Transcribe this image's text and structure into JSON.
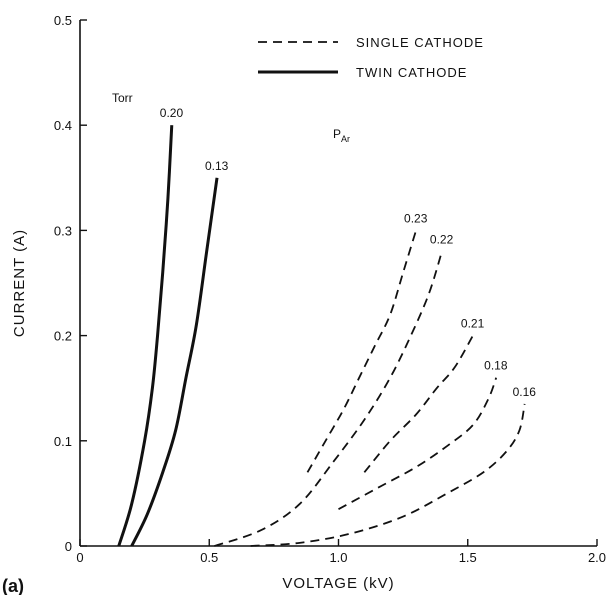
{
  "chart_data": {
    "type": "line",
    "panel_label": "(a)",
    "xlabel": "VOLTAGE (kV)",
    "ylabel": "CURRENT (A)",
    "xlim": [
      0,
      2.0
    ],
    "ylim": [
      0,
      0.5
    ],
    "xticks": [
      0,
      0.5,
      1.0,
      1.5,
      2.0
    ],
    "xtick_labels": [
      "0",
      "0.5",
      "1.0",
      "1.5",
      "2.0"
    ],
    "yticks": [
      0,
      0.1,
      0.2,
      0.3,
      0.4,
      0.5
    ],
    "ytick_labels": [
      "0",
      "0.1",
      "0.2",
      "0.3",
      "0.4",
      "0.5"
    ],
    "grid": false,
    "legend_position": "top-center",
    "legend": [
      {
        "label": "SINGLE CATHODE",
        "style": "dashed"
      },
      {
        "label": "TWIN CATHODE",
        "style": "solid"
      }
    ],
    "annotations": {
      "unit_label": "Torr",
      "pressure_label": "P",
      "pressure_subscript": "Ar"
    },
    "series": [
      {
        "label": "0.20",
        "style": "solid",
        "x": [
          0.15,
          0.2,
          0.25,
          0.28,
          0.3,
          0.32,
          0.34,
          0.355
        ],
        "y": [
          0,
          0.04,
          0.1,
          0.15,
          0.2,
          0.26,
          0.33,
          0.4
        ]
      },
      {
        "label": "0.13",
        "style": "solid",
        "x": [
          0.2,
          0.26,
          0.32,
          0.37,
          0.41,
          0.45,
          0.49,
          0.53
        ],
        "y": [
          0,
          0.03,
          0.07,
          0.11,
          0.16,
          0.21,
          0.28,
          0.35
        ]
      },
      {
        "label": "0.23",
        "style": "dashed",
        "x": [
          0.88,
          0.95,
          1.02,
          1.08,
          1.14,
          1.2,
          1.25,
          1.3
        ],
        "y": [
          0.07,
          0.1,
          0.13,
          0.16,
          0.19,
          0.22,
          0.26,
          0.3
        ]
      },
      {
        "label": "0.22",
        "style": "dashed",
        "x": [
          0.52,
          0.7,
          0.85,
          0.98,
          1.1,
          1.2,
          1.28,
          1.35,
          1.4
        ],
        "y": [
          0,
          0.015,
          0.04,
          0.08,
          0.12,
          0.16,
          0.2,
          0.24,
          0.28
        ]
      },
      {
        "label": "0.21",
        "style": "dashed",
        "x": [
          1.1,
          1.2,
          1.3,
          1.38,
          1.45,
          1.52
        ],
        "y": [
          0.07,
          0.1,
          0.125,
          0.15,
          0.17,
          0.2
        ]
      },
      {
        "label": "0.18",
        "style": "dashed",
        "x": [
          1.0,
          1.15,
          1.3,
          1.42,
          1.52,
          1.58,
          1.61
        ],
        "y": [
          0.035,
          0.055,
          0.075,
          0.095,
          0.115,
          0.14,
          0.16
        ]
      },
      {
        "label": "0.16",
        "style": "dashed",
        "x": [
          0.66,
          0.85,
          1.05,
          1.25,
          1.42,
          1.56,
          1.65,
          1.7,
          1.72
        ],
        "y": [
          0,
          0.003,
          0.012,
          0.028,
          0.05,
          0.07,
          0.09,
          0.11,
          0.135
        ]
      }
    ]
  }
}
